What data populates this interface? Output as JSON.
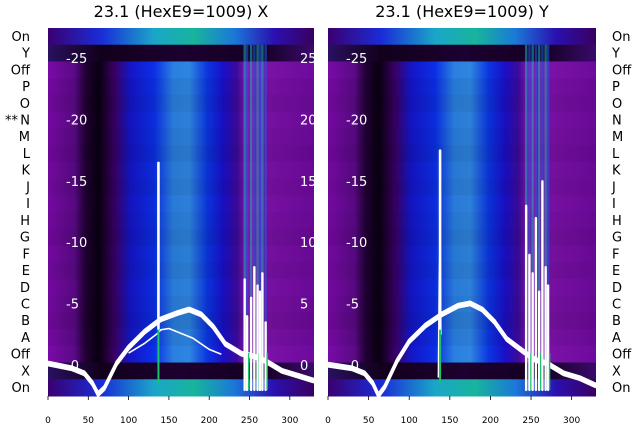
{
  "chart_data": [
    {
      "type": "heatmap",
      "title": "23.1 (HexE9=1009) X",
      "x_ticks": [
        "0",
        "50",
        "100",
        "150",
        "200",
        "250",
        "300"
      ],
      "xlim": [
        0,
        330
      ],
      "overlay_ylim": [
        -2.5,
        27.5
      ],
      "overlay_yticks": [
        "-0",
        "-5",
        "-10",
        "-15",
        "-20",
        "-25"
      ],
      "overlay_yticks_right": [
        "0",
        "5",
        "10",
        "15",
        "20",
        "25"
      ],
      "row_labels_left": [
        "On",
        "Y",
        "Off",
        "P",
        "O",
        "N",
        "M",
        "L",
        "K",
        "J",
        "I",
        "H",
        "G",
        "F",
        "E",
        "D",
        "C",
        "B",
        "A",
        "Off",
        "X",
        "On"
      ],
      "marker": "**",
      "marker_row": "N",
      "overlay_series": [
        {
          "x": [
            0,
            30,
            45,
            55,
            62,
            70,
            85,
            100,
            120,
            140,
            160,
            175,
            190,
            205,
            220,
            240,
            255,
            270,
            290,
            310,
            330
          ],
          "y": [
            0.2,
            -0.2,
            -0.6,
            -1.4,
            -2.3,
            -1.8,
            0.2,
            1.5,
            2.8,
            3.8,
            4.3,
            4.6,
            4.2,
            3.2,
            1.8,
            1.0,
            0.8,
            0.4,
            -0.4,
            -0.8,
            -1.2
          ]
        },
        {
          "x": [
            100,
            120,
            136,
            140,
            150,
            165,
            180,
            200,
            215
          ],
          "y": [
            1.0,
            1.8,
            2.6,
            2.9,
            3.0,
            2.6,
            2.2,
            1.3,
            0.9
          ]
        }
      ],
      "spike_x": 137,
      "spike_peak": 16.5,
      "burst_x": [
        244,
        247,
        252,
        256,
        260,
        263,
        266,
        270
      ],
      "burst_peak": [
        7.0,
        4.0,
        5.5,
        8.0,
        6.5,
        6.0,
        7.5,
        3.5
      ]
    },
    {
      "type": "heatmap",
      "title": "23.1 (HexE9=1009) Y",
      "x_ticks": [
        "0",
        "50",
        "100",
        "150",
        "200",
        "250",
        "300"
      ],
      "xlim": [
        0,
        330
      ],
      "overlay_ylim": [
        -2.5,
        27.5
      ],
      "overlay_yticks": [
        "-0",
        "-5",
        "-10",
        "-15",
        "-20",
        "-25"
      ],
      "row_labels_right": [
        "On",
        "Y",
        "Off",
        "P",
        "O",
        "N",
        "M",
        "L",
        "K",
        "J",
        "I",
        "H",
        "G",
        "F",
        "E",
        "D",
        "C",
        "B",
        "A",
        "Off",
        "X",
        "On"
      ],
      "overlay_series": [
        {
          "x": [
            0,
            30,
            45,
            55,
            62,
            70,
            85,
            100,
            120,
            140,
            160,
            175,
            190,
            205,
            220,
            240,
            255,
            270,
            290,
            310,
            330
          ],
          "y": [
            0.1,
            -0.2,
            -0.6,
            -1.4,
            -2.4,
            -1.7,
            0.4,
            2.0,
            3.3,
            4.2,
            4.9,
            5.1,
            4.6,
            3.6,
            2.2,
            1.2,
            0.5,
            0.2,
            -0.6,
            -1.0,
            -1.6
          ]
        },
        {
          "x": [
            136,
            137,
            138,
            139
          ],
          "y": [
            -1.0,
            7.0,
            10.0,
            2.5
          ]
        }
      ],
      "spike_x": 138,
      "spike_peak": 17.5,
      "burst_x": [
        244,
        248,
        252,
        256,
        260,
        264,
        268,
        271
      ],
      "burst_peak": [
        13.0,
        9.0,
        7.5,
        12.0,
        6.0,
        15.0,
        8.0,
        6.5
      ]
    }
  ]
}
